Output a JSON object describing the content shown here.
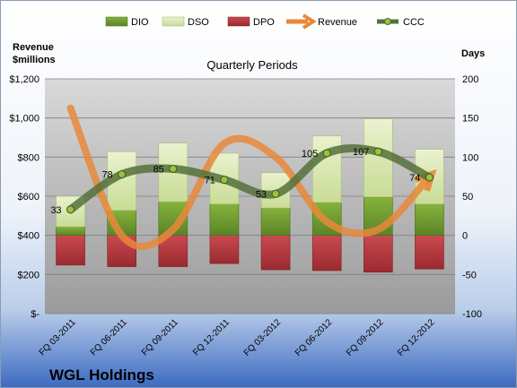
{
  "chart_data": {
    "type": "bar",
    "title": "Quarterly Periods",
    "company": "WGL Holdings",
    "left_axis_title": [
      "Revenue",
      "$millions"
    ],
    "right_axis_title": "Days",
    "categories": [
      "FQ 03-2011",
      "FQ 06-2011",
      "FQ 09-2011",
      "FQ 12-2011",
      "FQ 03-2012",
      "FQ 06-2012",
      "FQ 09-2012",
      "FQ 12-2012"
    ],
    "left_ticks": [
      "$-",
      "$200",
      "$400",
      "$600",
      "$800",
      "$1,000",
      "$1,200"
    ],
    "right_ticks": [
      "-100",
      "-50",
      "0",
      "50",
      "100",
      "150",
      "200"
    ],
    "ylim_left": [
      0,
      1200
    ],
    "ylim_right": [
      -100,
      200
    ],
    "grid": true,
    "legend_position": "top",
    "series": [
      {
        "name": "DIO",
        "type": "bar",
        "axis": "right",
        "color": "#6e9a2e",
        "values": [
          11,
          32,
          43,
          40,
          35,
          42,
          49,
          40
        ]
      },
      {
        "name": "DSO",
        "type": "bar",
        "axis": "right",
        "color": "#d8e6b0",
        "values": [
          39,
          75,
          75,
          65,
          45,
          85,
          100,
          70
        ]
      },
      {
        "name": "DPO",
        "type": "bar",
        "axis": "right",
        "color": "#b2343a",
        "values": [
          -38,
          -40,
          -40,
          -36,
          -44,
          -45,
          -47,
          -43
        ]
      },
      {
        "name": "Revenue",
        "type": "line",
        "axis": "left",
        "color": "#e8883a",
        "values": [
          1050,
          400,
          430,
          870,
          800,
          470,
          430,
          700
        ]
      },
      {
        "name": "CCC",
        "type": "line",
        "axis": "right",
        "color": "#55713a",
        "values": [
          33,
          78,
          85,
          71,
          53,
          105,
          107,
          74
        ]
      }
    ],
    "data_labels": [
      "33",
      "78",
      "85",
      "71",
      "53",
      "105",
      "107",
      "74"
    ]
  }
}
